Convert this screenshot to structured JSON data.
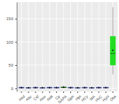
{
  "chart_data": {
    "type": "box",
    "categories": [
      "Asd",
      "Abc",
      "Csf",
      "Asw",
      "AMt",
      "Cp",
      "GAPA",
      "Gph",
      "Hpt",
      "HCy",
      "MA",
      "HoC",
      "HyH",
      "Obs"
    ],
    "min": [
      0,
      0,
      0,
      0,
      0,
      0,
      0,
      0,
      0,
      0,
      0,
      0,
      0,
      30
    ],
    "q1": [
      0.5,
      0.4,
      0.5,
      0.4,
      0.5,
      0.5,
      1,
      0.5,
      0.4,
      0.5,
      0.4,
      0.5,
      0.5,
      50
    ],
    "median": [
      1,
      1,
      1,
      1,
      1,
      1,
      2,
      1,
      1,
      1,
      1,
      1,
      1,
      75
    ],
    "q3": [
      2,
      1.5,
      2,
      1.5,
      2,
      2,
      3,
      2,
      1.5,
      2,
      1.5,
      2,
      2,
      112
    ],
    "max": [
      4,
      3,
      4,
      3,
      4,
      4,
      6,
      4,
      3,
      4,
      3,
      4,
      4,
      175
    ],
    "mean": [
      1.3,
      1.1,
      1.3,
      1.1,
      1.3,
      1.3,
      2.2,
      1.3,
      1.1,
      1.3,
      1.1,
      1.3,
      1.3,
      82
    ],
    "colors": [
      "#2b3fbf",
      "#2b3fbf",
      "#2b3fbf",
      "#2b3fbf",
      "#2b3fbf",
      "#2b3fbf",
      "#2e8b2e",
      "#2b3fbf",
      "#2b3fbf",
      "#2b3fbf",
      "#2b3fbf",
      "#2b3fbf",
      "#2b3fbf",
      "#22dd22"
    ],
    "ylim": [
      -7,
      186
    ],
    "yticks": [
      0,
      50,
      100,
      150
    ],
    "grid": true
  }
}
